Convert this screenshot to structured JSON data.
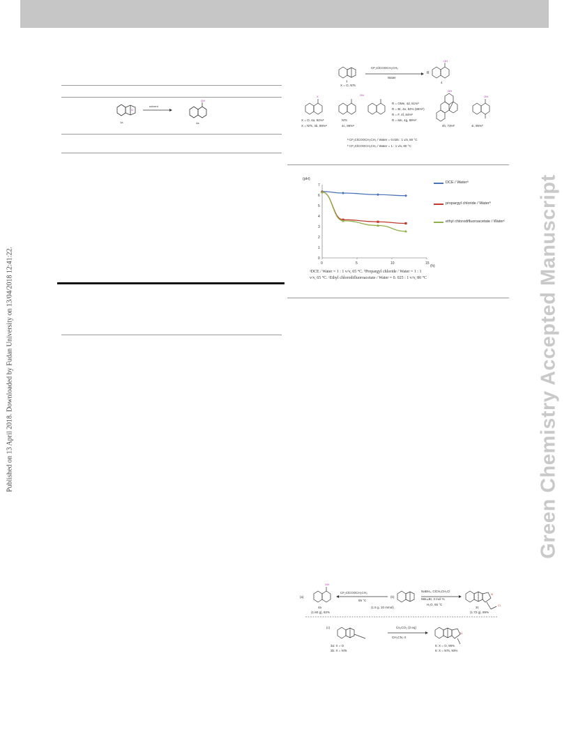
{
  "side_left_text": "Published on 13 April 2018. Downloaded by Fudan University on 13/04/2018 12:41:22.",
  "side_right_text": "Green Chemistry Accepted Manuscript",
  "table_scheme": {
    "reagent": "solvent",
    "sm_label": "1a",
    "product_label": "4a"
  },
  "scheme_top": {
    "reagent_top": "CF₂ClCOOCH₂CH₃",
    "reagent_bottom": "Water",
    "sm_label": "X = O, NTs",
    "sm_number": "1",
    "product_label": "4",
    "items": [
      "X = O, 4a, 92%ᵃ",
      "X = NTs, 4b, 89%ᵃ",
      "NTs",
      "4c, 86%ᵃ",
      "R = OMe, 4d, 81%ᵇ",
      "R = Br, 4e, 84% (86%ᵇ)",
      "R = F, 4f, 84%ᵇ",
      "R = Me, 4g, 89%ᵇ",
      "4h, 73%ᵇ",
      "4i, 95%ᵇ"
    ],
    "footnote_a": "ᵃ CF₂ClCOOCH₂CH₃ / Water = 0.025 : 1 v/v, 80 °C",
    "footnote_b": "ᵇ CF₂ClCOOCH₂CH₃ / Water = 1 : 1 v/v, 80 °C"
  },
  "chart_data": {
    "type": "line",
    "ylabel": "(pH)",
    "xlabel": "(h)",
    "xlim": [
      0,
      15
    ],
    "ylim": [
      0,
      7
    ],
    "x_ticks": [
      "0",
      "5",
      "10",
      "15"
    ],
    "y_ticks": [
      "0",
      "1",
      "2",
      "3",
      "4",
      "5",
      "6",
      "7"
    ],
    "series": [
      {
        "name": "DCE / Waterᵃ",
        "color": "#4a72b8",
        "x": [
          0,
          3,
          8,
          12
        ],
        "y": [
          6.35,
          6.2,
          6.05,
          5.95
        ]
      },
      {
        "name": "propargyl chloride / Waterᵇ",
        "color": "#c0392b",
        "x": [
          0,
          3,
          8,
          12
        ],
        "y": [
          6.3,
          3.65,
          3.45,
          3.3
        ]
      },
      {
        "name": "ethyl chlorodifluoroacetate / Waterᶜ",
        "color": "#8fb04a",
        "x": [
          0,
          3,
          8,
          12
        ],
        "y": [
          6.3,
          3.55,
          3.1,
          2.55
        ]
      }
    ],
    "caption_line1": "ᵃDCE / Water = 1 : 1 v/v, 65 °C.  ᵇPropargyl chloride / Water = 1 : 1",
    "caption_line2": "v/v, 65 °C. ᶜEthyl chlorodifluoroacetate / Water = 0. 025 : 1 v/v, 80 °C"
  },
  "scheme_bottom": {
    "reagent_left_top": "CF₂ClCOOCH₂CH₃",
    "reagent_left_mid": "65 °C",
    "left_label_a": "(a)",
    "product_4a": "4a",
    "yield_4a": "(1.60 g), 82%",
    "left_label_b": "(b)",
    "cond_right_top": "NaBH₄, ClCH₂CH₂Cl",
    "cond_right_mid": "NBu₄Br, 3 mol %",
    "cond_right_bot": "H₂O, 65 °C",
    "scale": "(1.5 g, 10 mmol)",
    "product_3c": "3c",
    "yield_3c": "(1.72 g), 89%",
    "row2_label": "(c)",
    "sm2_a": "3a: X = O",
    "sm2_b": "3b: X = NTs",
    "cond2_top": "Cs₂CO₃ (2 eq)",
    "cond2_bot": "CH₃CN, rt",
    "prod2_a": "5: X = O, 95%",
    "prod2_b": "6: X = NTs, 93%"
  }
}
